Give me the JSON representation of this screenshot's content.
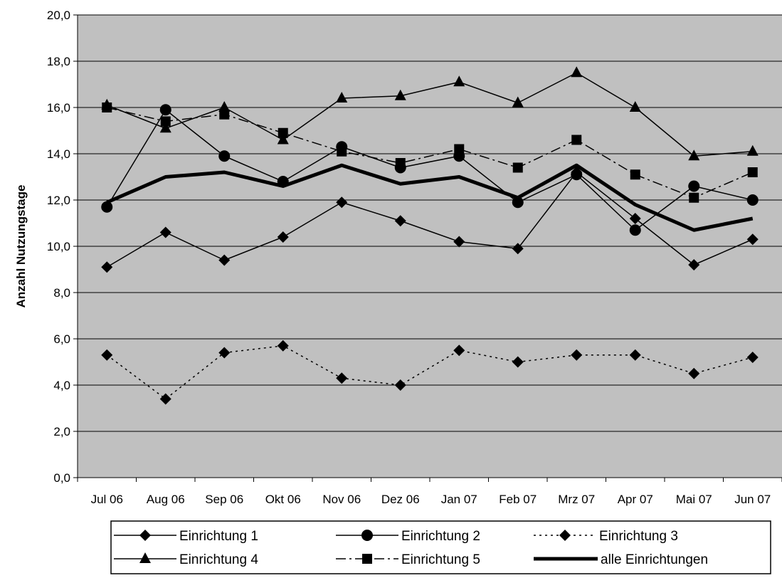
{
  "chart_data": {
    "type": "line",
    "title": "",
    "xlabel": "",
    "ylabel": "Anzahl Nutzungstage",
    "ylim": [
      0,
      20
    ],
    "ytick_labels": [
      "0,0",
      "2,0",
      "4,0",
      "6,0",
      "8,0",
      "10,0",
      "12,0",
      "14,0",
      "16,0",
      "18,0",
      "20,0"
    ],
    "grid": true,
    "plot_background": "#c0c0c0",
    "legend_position": "bottom",
    "categories": [
      "Jul 06",
      "Aug 06",
      "Sep 06",
      "Okt 06",
      "Nov 06",
      "Dez 06",
      "Jan 07",
      "Feb 07",
      "Mrz 07",
      "Apr 07",
      "Mai 07",
      "Jun 07"
    ],
    "series": [
      {
        "name": "Einrichtung 1",
        "marker": "diamond",
        "dash": "solid",
        "width": 1.5,
        "values": [
          9.1,
          10.6,
          9.4,
          10.4,
          11.9,
          11.1,
          10.2,
          9.9,
          13.2,
          11.2,
          9.2,
          10.3
        ]
      },
      {
        "name": "Einrichtung 2",
        "marker": "circle",
        "dash": "solid",
        "width": 1.5,
        "values": [
          11.7,
          15.9,
          13.9,
          12.8,
          14.3,
          13.4,
          13.9,
          11.9,
          13.1,
          10.7,
          12.6,
          12.0
        ]
      },
      {
        "name": "Einrichtung 3",
        "marker": "diamond",
        "dash": "dotted",
        "width": 1.5,
        "values": [
          5.3,
          3.4,
          5.4,
          5.7,
          4.3,
          4.0,
          5.5,
          5.0,
          5.3,
          5.3,
          4.5,
          5.2
        ]
      },
      {
        "name": "Einrichtung 4",
        "marker": "triangle",
        "dash": "solid",
        "width": 1.5,
        "values": [
          16.1,
          15.1,
          16.0,
          14.6,
          16.4,
          16.5,
          17.1,
          16.2,
          17.5,
          16.0,
          13.9,
          14.1
        ]
      },
      {
        "name": "Einrichtung 5",
        "marker": "square",
        "dash": "dashdot",
        "width": 1.5,
        "values": [
          16.0,
          15.4,
          15.7,
          14.9,
          14.1,
          13.6,
          14.2,
          13.4,
          14.6,
          13.1,
          12.1,
          13.2
        ]
      },
      {
        "name": "alle Einrichtungen",
        "marker": "none",
        "dash": "solid",
        "width": 5,
        "values": [
          11.9,
          13.0,
          13.2,
          12.6,
          13.5,
          12.7,
          13.0,
          12.1,
          13.5,
          11.8,
          10.7,
          11.2
        ]
      }
    ]
  }
}
